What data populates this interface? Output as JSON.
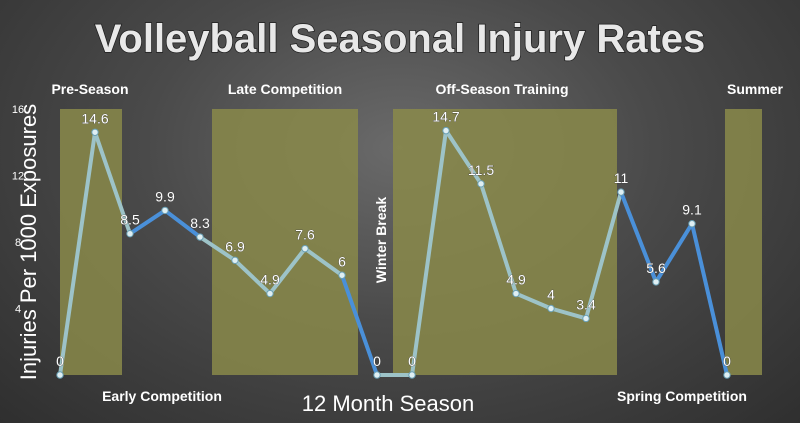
{
  "chart_data": {
    "type": "line",
    "title": "Volleyball Seasonal Injury Rates",
    "xlabel": "12 Month Season",
    "ylabel": "Injuries Per 1000 Exposures",
    "ylim": [
      0,
      16
    ],
    "yticks": [
      "4",
      "8",
      "12",
      "16"
    ],
    "grid": false,
    "colors": {
      "highlight_band": "#8a8a4a",
      "line_in_band": "#9dc3c8",
      "line_outside": "#4a90d9",
      "marker": "#dfeff3"
    },
    "series": [
      {
        "values": [
          0,
          14.6,
          8.5,
          9.9,
          8.3,
          6.9,
          4.9,
          7.6,
          6,
          0,
          0,
          14.7,
          11.5,
          4.9,
          4,
          3.4,
          11,
          5.6,
          9.1,
          0
        ],
        "labels": [
          "0",
          "14.6",
          "8.5",
          "9.9",
          "8.3",
          "6.9",
          "4.9",
          "7.6",
          "6",
          "0",
          "0",
          "14.7",
          "11.5",
          "4.9",
          "4",
          "3.4",
          "11",
          "5.6",
          "9.1",
          "0"
        ]
      }
    ],
    "regions": [
      {
        "label": "Pre-Season",
        "highlighted": true,
        "label_side": "top"
      },
      {
        "label": "Early Competition",
        "highlighted": false,
        "label_side": "bottom"
      },
      {
        "label": "Late Competition",
        "highlighted": true,
        "label_side": "top"
      },
      {
        "label": "Winter Break",
        "highlighted": false,
        "label_side": "vertical"
      },
      {
        "label": "Off-Season Training",
        "highlighted": true,
        "label_side": "top"
      },
      {
        "label": "Spring Competition",
        "highlighted": false,
        "label_side": "bottom"
      },
      {
        "label": "Summer",
        "highlighted": true,
        "label_side": "top"
      }
    ]
  }
}
